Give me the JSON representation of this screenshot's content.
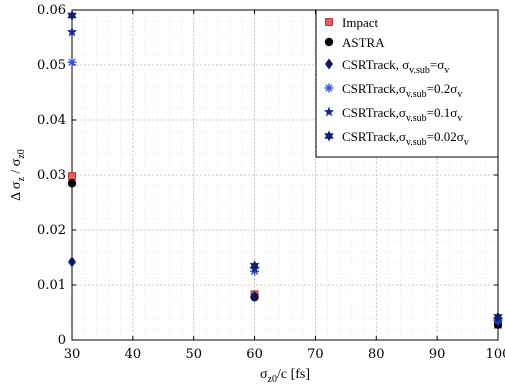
{
  "chart_data": {
    "type": "scatter",
    "xlabel": {
      "main": "σ",
      "sub": "z0",
      "tail": "/c  [fs]"
    },
    "ylabel": {
      "main": "Δ σ",
      "sub1": "z",
      "mid": " / σ",
      "sub2": "z0"
    },
    "xlim": [
      30,
      100
    ],
    "ylim": [
      0,
      0.06
    ],
    "xticks": [
      30,
      40,
      50,
      60,
      70,
      80,
      90,
      100
    ],
    "yticks": [
      0,
      0.01,
      0.02,
      0.03,
      0.04,
      0.05,
      0.06
    ],
    "xtick_labels": [
      "30",
      "40",
      "50",
      "60",
      "70",
      "80",
      "90",
      "100"
    ],
    "ytick_labels": [
      "0",
      "0.01",
      "0.02",
      "0.03",
      "0.04",
      "0.05",
      "0.06"
    ],
    "grid": true,
    "legend_position": "top-right",
    "series": [
      {
        "name": "Impact",
        "marker": "square",
        "color": "#e06060",
        "x": [
          30,
          60,
          100
        ],
        "y": [
          0.0298,
          0.0083,
          0.0028
        ]
      },
      {
        "name": "ASTRA",
        "marker": "circle",
        "color": "#000000",
        "x": [
          30,
          60,
          100
        ],
        "y": [
          0.0285,
          0.0078,
          0.0028
        ]
      },
      {
        "name": "CSRTrack, σ",
        "name_sub": "v.sub",
        "name_tail": "=σ",
        "name_tail_sub": "v",
        "marker": "diamond",
        "color": "#0a1a6b",
        "x": [
          30,
          60,
          100
        ],
        "y": [
          0.0142,
          0.0079,
          0.0035
        ]
      },
      {
        "name": "CSRTrack,σ",
        "name_sub": "v.sub",
        "name_tail": "=0.2σ",
        "name_tail_sub": "v",
        "marker": "asterisk",
        "color": "#2b4bd6",
        "x": [
          30,
          60,
          100
        ],
        "y": [
          0.0505,
          0.0125,
          0.0035
        ]
      },
      {
        "name": "CSRTrack,σ",
        "name_sub": "v.sub",
        "name_tail": "=0.1σ",
        "name_tail_sub": "v",
        "marker": "pentagram",
        "color": "#1a2a9a",
        "x": [
          30,
          60,
          100
        ],
        "y": [
          0.056,
          0.013,
          0.0038
        ]
      },
      {
        "name": "CSRTrack,σ",
        "name_sub": "v.sub",
        "name_tail": "=0.02σ",
        "name_tail_sub": "v",
        "marker": "hexagram",
        "color": "#0f1f6e",
        "x": [
          30,
          60,
          100
        ],
        "y": [
          0.059,
          0.0135,
          0.0042
        ]
      }
    ]
  }
}
